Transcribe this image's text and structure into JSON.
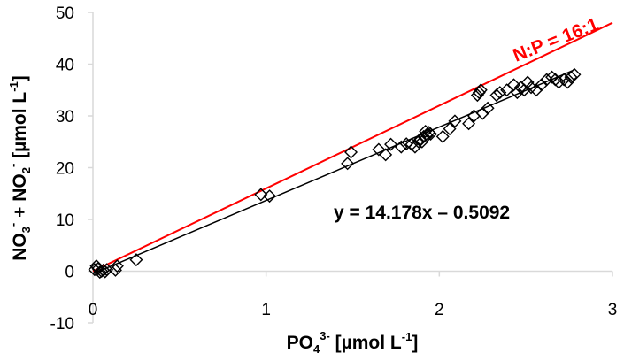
{
  "chart_data": {
    "type": "scatter",
    "title": "",
    "xlabel": {
      "base": "PO",
      "sub": "4",
      "sup": "3-",
      "unit": " [µmol L",
      "unit_sup": "-1",
      "close": "]"
    },
    "ylabel": {
      "p1": "NO",
      "p1_sub": "3",
      "p1_sup": "-",
      "mid": " + NO",
      "p2_sub": "2",
      "p2_sup": "-",
      "unit": " [µmol L",
      "unit_sup": "-1",
      "close": "]"
    },
    "xlim": [
      0,
      3
    ],
    "ylim": [
      -10,
      50
    ],
    "x_ticks": [
      0,
      1,
      2,
      3
    ],
    "x_tick_labels": [
      "0",
      "1",
      "2",
      "3"
    ],
    "y_ticks": [
      -10,
      0,
      10,
      20,
      30,
      40,
      50
    ],
    "y_tick_labels": [
      "-10",
      "0",
      "10",
      "20",
      "30",
      "40",
      "50"
    ],
    "grid": false,
    "legend": "none",
    "colors": {
      "points": "#000000",
      "fit_line": "#000000",
      "redfield_line": "#ff0000",
      "axes": "#d9d9d9"
    },
    "series": [
      {
        "marker": "diamond-open",
        "x": [
          0.01,
          0.02,
          0.03,
          0.04,
          0.05,
          0.06,
          0.07,
          0.08,
          0.13,
          0.14,
          0.25,
          0.97,
          1.02,
          1.47,
          1.49,
          1.65,
          1.69,
          1.72,
          1.78,
          1.81,
          1.84,
          1.86,
          1.88,
          1.89,
          1.9,
          1.91,
          1.92,
          1.93,
          1.94,
          1.95,
          2.02,
          2.06,
          2.09,
          2.17,
          2.2,
          2.22,
          2.23,
          2.24,
          2.25,
          2.28,
          2.33,
          2.35,
          2.39,
          2.43,
          2.45,
          2.47,
          2.49,
          2.51,
          2.53,
          2.56,
          2.59,
          2.62,
          2.65,
          2.67,
          2.69,
          2.72,
          2.74,
          2.76,
          2.78
        ],
        "y": [
          0.3,
          1.0,
          0.5,
          -0.2,
          0.0,
          0.2,
          -0.1,
          0.3,
          0.2,
          1.0,
          2.2,
          14.8,
          14.5,
          20.8,
          23.0,
          23.5,
          22.5,
          24.5,
          24.0,
          24.6,
          24.5,
          24.0,
          25.0,
          25.5,
          25.0,
          26.0,
          27.0,
          26.2,
          26.8,
          26.5,
          26.0,
          27.5,
          29.0,
          28.5,
          30.0,
          34.0,
          34.5,
          35.0,
          30.5,
          31.5,
          34.0,
          34.5,
          35.0,
          36.0,
          34.5,
          35.5,
          35.0,
          36.5,
          35.5,
          35.0,
          36.0,
          37.0,
          37.5,
          37.0,
          36.5,
          37.0,
          36.5,
          37.5,
          38.0
        ]
      }
    ],
    "fit": {
      "slope": 14.178,
      "intercept": -0.5092,
      "x_range": [
        0,
        2.78
      ],
      "label": "y = 14.178x – 0.5092"
    },
    "reference_line": {
      "slope": 16,
      "intercept": 0,
      "x_range": [
        0,
        3
      ],
      "label": "N:P = 16:1"
    }
  }
}
